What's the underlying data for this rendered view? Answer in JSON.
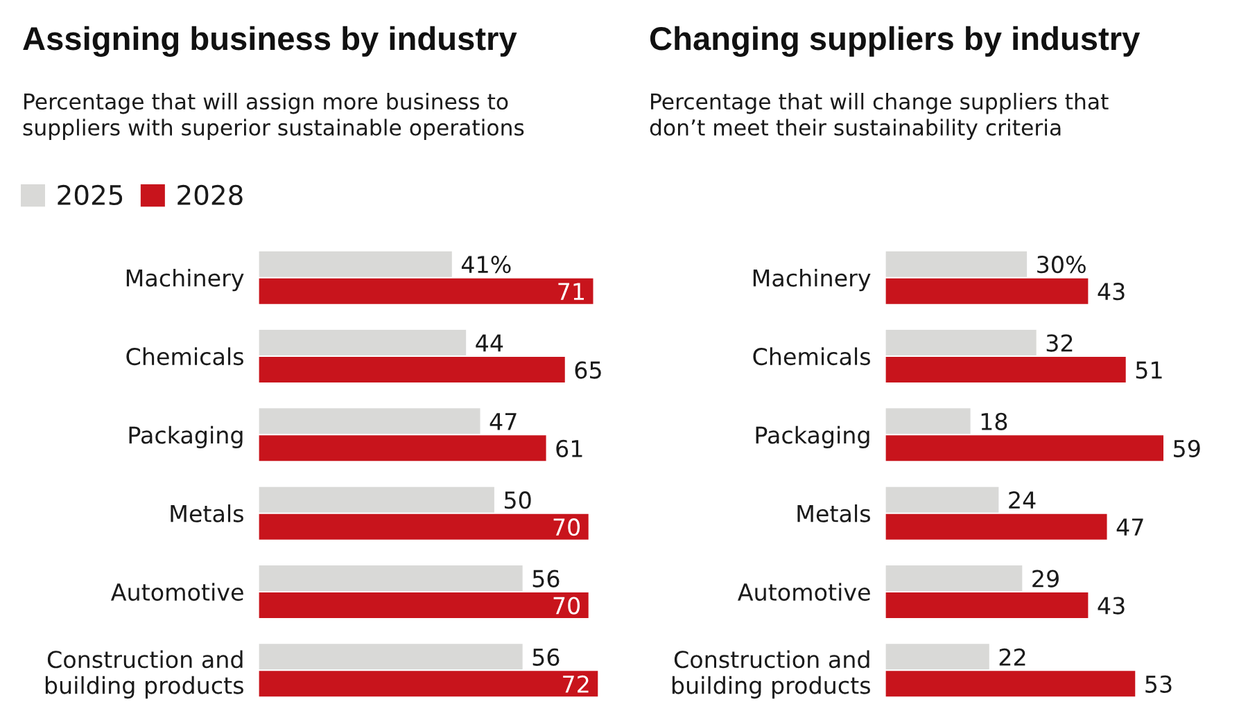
{
  "chart_data": [
    {
      "type": "bar",
      "orientation": "horizontal",
      "title": "Assigning business by industry",
      "subtitle": "Percentage that will assign more business to\nsuppliers with superior sustainable operations",
      "legend": "top left",
      "categories": [
        "Machinery",
        "Chemicals",
        "Packaging",
        "Metals",
        "Automotive",
        "Construction and\nbuilding products"
      ],
      "series": [
        {
          "name": "2025",
          "color": "#d9d9d7",
          "values": [
            41,
            44,
            47,
            50,
            56,
            56
          ],
          "value_labels": [
            "41%",
            "44",
            "47",
            "50",
            "56",
            "56"
          ]
        },
        {
          "name": "2028",
          "color": "#c8141c",
          "values": [
            71,
            65,
            61,
            70,
            70,
            72
          ],
          "value_labels": [
            "71",
            "65",
            "61",
            "70",
            "70",
            "72"
          ]
        }
      ]
    },
    {
      "type": "bar",
      "orientation": "horizontal",
      "title": "Changing suppliers by industry",
      "subtitle": "Percentage that will change suppliers that\ndon’t meet their sustainability criteria",
      "categories": [
        "Machinery",
        "Chemicals",
        "Packaging",
        "Metals",
        "Automotive",
        "Construction and\nbuilding products"
      ],
      "series": [
        {
          "color": "#d9d9d7",
          "values": [
            30,
            32,
            18,
            24,
            29,
            22
          ],
          "value_labels": [
            "30%",
            "32",
            "18",
            "24",
            "29",
            "22"
          ]
        },
        {
          "color": "#c8141c",
          "values": [
            43,
            51,
            59,
            47,
            43,
            53
          ],
          "value_labels": [
            "43",
            "51",
            "59",
            "47",
            "43",
            "53"
          ]
        }
      ]
    }
  ]
}
